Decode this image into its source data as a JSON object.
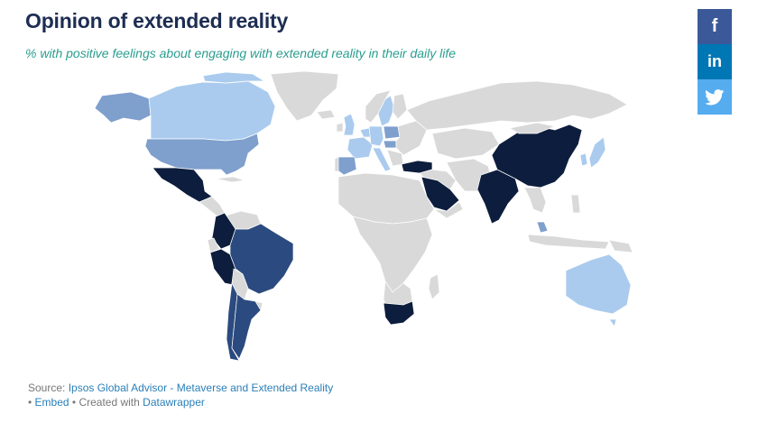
{
  "title": "Opinion of extended reality",
  "subtitle": "% with positive feelings about engaging with extended reality in their daily life",
  "share": {
    "facebook_label": "f",
    "linkedin_label": "in",
    "twitter_icon": "twitter-bird-icon"
  },
  "colors": {
    "no_data": "#d9d9d9",
    "level_1": "#aacbee",
    "level_2": "#7f9fcd",
    "level_3": "#2b4a7f",
    "level_4": "#0d1d3d",
    "title": "#1d2d52",
    "subtitle": "#2a9d8f",
    "link": "#2a7fb8"
  },
  "map": {
    "type": "choropleth world map",
    "countries_by_shade": {
      "darkest": [
        "China",
        "India",
        "Saudi Arabia",
        "Turkey",
        "Mexico",
        "Colombia",
        "Peru",
        "South Africa"
      ],
      "dark": [
        "Brazil",
        "Chile",
        "Argentina"
      ],
      "medium": [
        "United States",
        "Spain",
        "Poland",
        "Hungary",
        "Malaysia",
        "Alaska (United States)"
      ],
      "light": [
        "Canada",
        "Australia",
        "Japan",
        "South Korea",
        "Great Britain",
        "France",
        "Germany",
        "Belgium",
        "Netherlands",
        "Sweden",
        "Italy"
      ]
    }
  },
  "footer": {
    "source_prefix": "Source: ",
    "source_link": "Ipsos Global Advisor - Metaverse and Extended Reality",
    "bullet1": "• ",
    "embed_link": "Embed",
    "created_text": " • Created with ",
    "datawrapper_link": "Datawrapper"
  }
}
